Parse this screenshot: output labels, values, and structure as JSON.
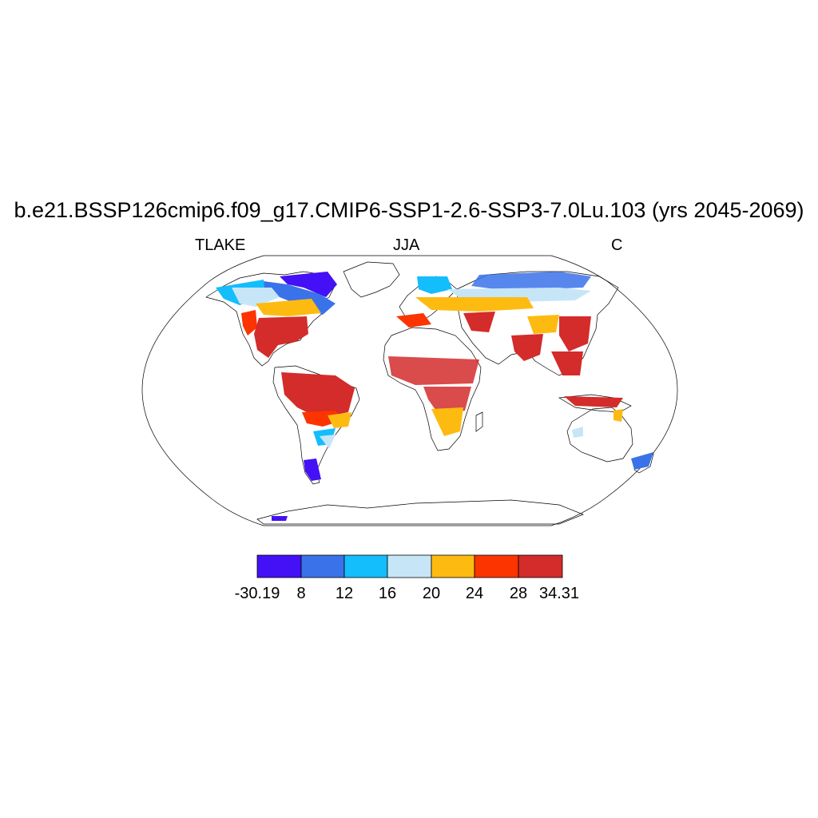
{
  "title": "b.e21.BSSP126cmip6.f09_g17.CMIP6-SSP1-2.6-SSP3-7.0Lu.103 (yrs 2045-2069)",
  "left_label": "TLAKE",
  "center_label": "JJA",
  "right_label": "C",
  "colorbar": {
    "colors": [
      "#4410f5",
      "#3a72ea",
      "#14bdfb",
      "#c6e6f8",
      "#fdbb12",
      "#fc3400",
      "#d42b2b"
    ],
    "labels": [
      "-30.19",
      "8",
      "12",
      "16",
      "20",
      "24",
      "28",
      "34.31"
    ]
  }
}
